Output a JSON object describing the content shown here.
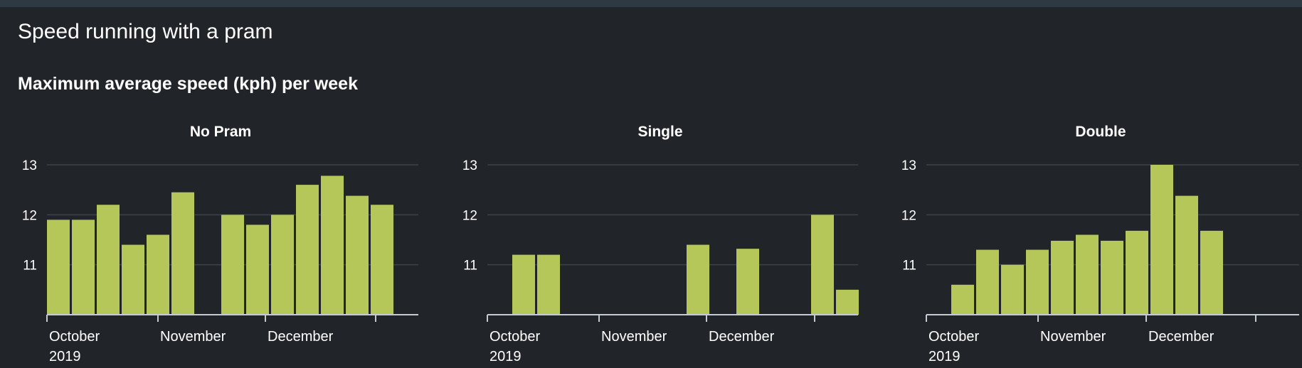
{
  "panel": {
    "title": "Speed running with a pram",
    "subtitle": "Maximum average speed (kph) per week"
  },
  "colors": {
    "background": "#212529",
    "bar": "#b6c75a",
    "text": "#ffffff",
    "grid": "#3b4249",
    "axis": "#c3cbd4"
  },
  "chart_data": [
    {
      "type": "bar",
      "title": "No Pram",
      "xlabel": "",
      "ylabel": "",
      "ylim": [
        10,
        13
      ],
      "yticks": [
        11,
        12,
        13
      ],
      "x_tick_labels": [
        [
          "October",
          "2019"
        ],
        [
          "November"
        ],
        [
          "December"
        ]
      ],
      "values": [
        11.9,
        11.9,
        12.2,
        11.4,
        11.6,
        12.45,
        null,
        12.0,
        11.8,
        12.0,
        12.6,
        12.78,
        12.38,
        12.2
      ],
      "grid": true,
      "legend": "none"
    },
    {
      "type": "bar",
      "title": "Single",
      "xlabel": "",
      "ylabel": "",
      "ylim": [
        10,
        13
      ],
      "yticks": [
        11,
        12,
        13
      ],
      "x_tick_labels": [
        [
          "October",
          "2019"
        ],
        [
          "November"
        ],
        [
          "December"
        ]
      ],
      "values": [
        null,
        11.2,
        11.2,
        null,
        null,
        null,
        null,
        null,
        11.4,
        null,
        11.32,
        null,
        null,
        12.0,
        10.5
      ],
      "grid": true,
      "legend": "none"
    },
    {
      "type": "bar",
      "title": "Double",
      "xlabel": "",
      "ylabel": "",
      "ylim": [
        10,
        13
      ],
      "yticks": [
        11,
        12,
        13
      ],
      "x_tick_labels": [
        [
          "October",
          "2019"
        ],
        [
          "November"
        ],
        [
          "December"
        ]
      ],
      "values": [
        null,
        10.6,
        11.3,
        11.0,
        11.3,
        11.48,
        11.6,
        11.48,
        11.68,
        13.0,
        12.38,
        11.68
      ],
      "grid": true,
      "legend": "none"
    }
  ]
}
